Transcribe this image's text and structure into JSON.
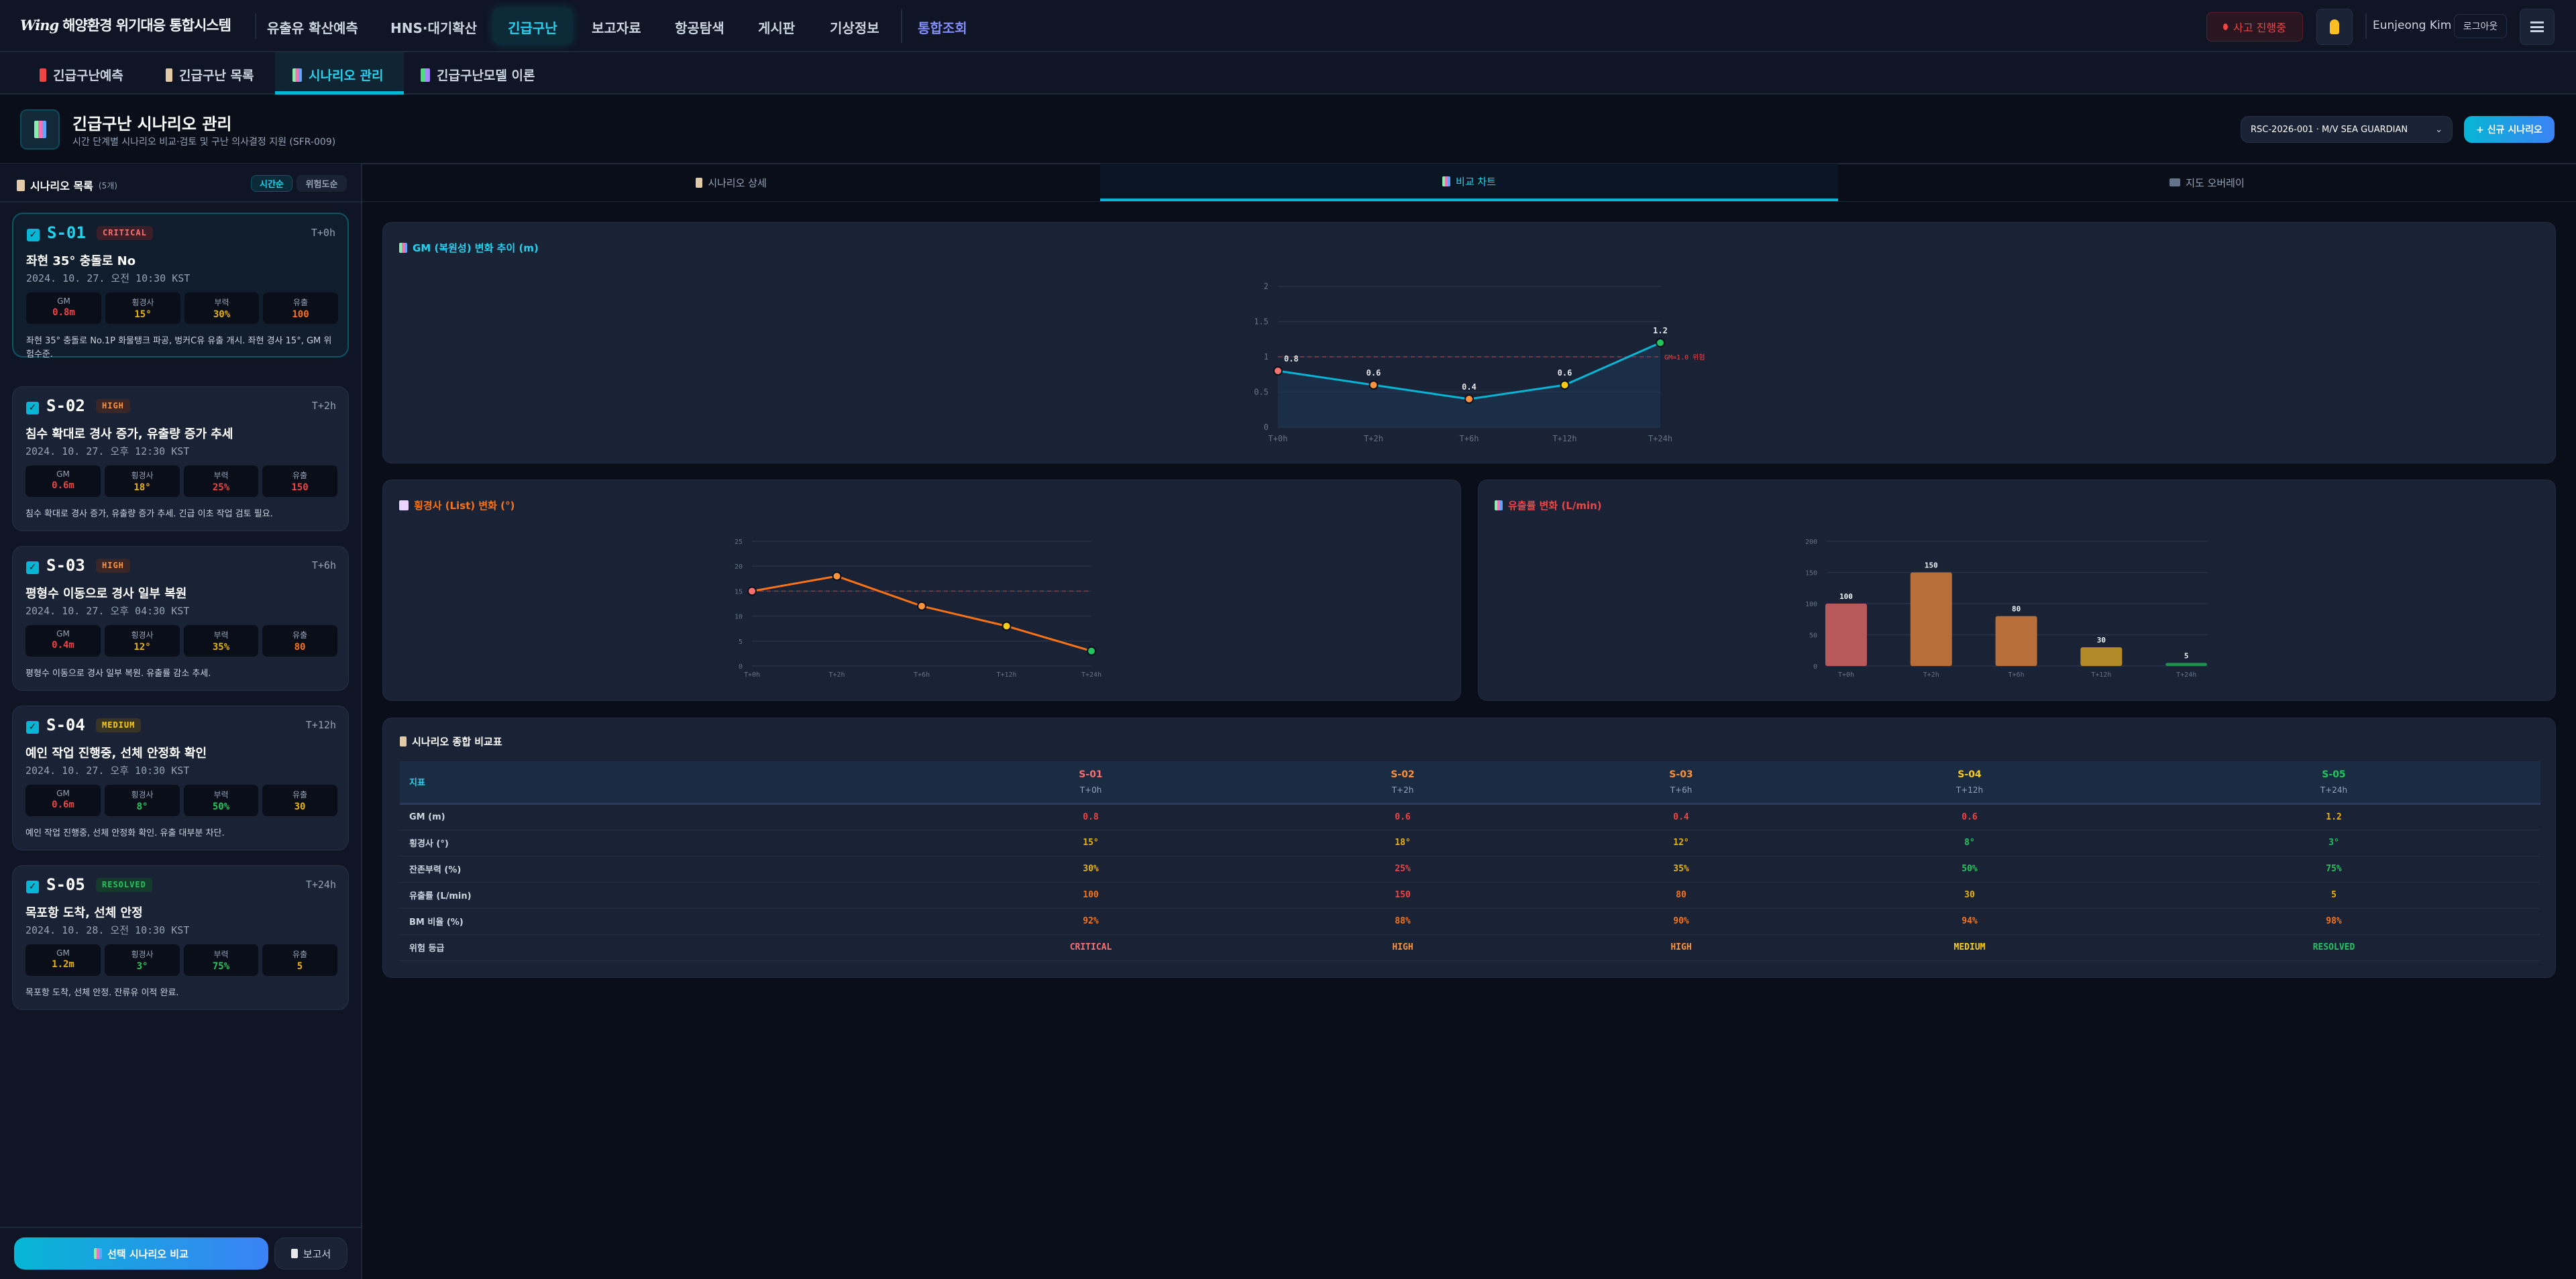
{
  "colors": {
    "accent": "#06b6d4",
    "critical": "#f87171",
    "high": "#fb923c",
    "medium": "#facc15",
    "resolved": "#22c55e",
    "red": "#ef4444",
    "orange": "#f97316",
    "amber": "#eab308",
    "green": "#22c55e"
  },
  "header": {
    "logo_mark": "Wing",
    "app_title": "해양환경 위기대응 통합시스템",
    "nav": [
      "유출유 확산예측",
      "HNS·대기확산",
      "긴급구난",
      "보고자료",
      "항공탐색",
      "게시판",
      "기상정보",
      "통합조회"
    ],
    "active_nav": "긴급구난",
    "incident_badge": "사고 진행중",
    "bell_icon": "bell-icon",
    "user_name": "Eunjeong Kim",
    "logout": "로그아웃",
    "menu_icon": "hamburger-icon"
  },
  "subtabs": [
    {
      "label": "긴급구난예측",
      "icon": "beacon-icon"
    },
    {
      "label": "긴급구난 목록",
      "icon": "clipboard-icon"
    },
    {
      "label": "시나리오 관리",
      "icon": "chart-icon",
      "active": true
    },
    {
      "label": "긴급구난모델 이론",
      "icon": "books-icon"
    }
  ],
  "page": {
    "title": "긴급구난 시나리오 관리",
    "subtitle": "시간 단계별 시나리오 비교·검토 및 구난 의사결정 지원 (SFR-009)",
    "incident_select": "RSC-2026-001 · M/V SEA GUARDIAN",
    "new_button": "+ 신규 시나리오"
  },
  "sidebar": {
    "title": "시나리오 목록",
    "count": "(5개)",
    "sort_time": "시간순",
    "sort_risk": "위험도순",
    "metric_labels": [
      "GM",
      "횡경사",
      "부력",
      "유출"
    ],
    "compare_button": "선택 시나리오 비교",
    "report_button": "보고서",
    "scenarios": [
      {
        "id": "S-01",
        "grade": "CRITICAL",
        "time": "T+0h",
        "title": "좌현 35° 충돌로 No",
        "date": "2024. 10. 27. 오전 10:30 KST",
        "checked": true,
        "selected": true,
        "metrics": [
          {
            "v": "0.8m",
            "c": "#ef4444"
          },
          {
            "v": "15°",
            "c": "#eab308"
          },
          {
            "v": "30%",
            "c": "#eab308"
          },
          {
            "v": "100",
            "c": "#f97316"
          }
        ],
        "desc": "좌현 35° 충돌로 No.1P 화물탱크 파공, 벙커C유 유출 개시. 좌현 경사 15°, GM 위험수준."
      },
      {
        "id": "S-02",
        "grade": "HIGH",
        "time": "T+2h",
        "title": "침수 확대로 경사 증가, 유출량 증가 추세",
        "date": "2024. 10. 27. 오후 12:30 KST",
        "checked": true,
        "metrics": [
          {
            "v": "0.6m",
            "c": "#ef4444"
          },
          {
            "v": "18°",
            "c": "#eab308"
          },
          {
            "v": "25%",
            "c": "#ef4444"
          },
          {
            "v": "150",
            "c": "#ef4444"
          }
        ],
        "desc": "침수 확대로 경사 증가, 유출량 증가 추세. 긴급 이초 작업 검토 필요."
      },
      {
        "id": "S-03",
        "grade": "HIGH",
        "time": "T+6h",
        "title": "평형수 이동으로 경사 일부 복원",
        "date": "2024. 10. 27. 오후 04:30 KST",
        "checked": true,
        "metrics": [
          {
            "v": "0.4m",
            "c": "#ef4444"
          },
          {
            "v": "12°",
            "c": "#eab308"
          },
          {
            "v": "35%",
            "c": "#eab308"
          },
          {
            "v": "80",
            "c": "#f97316"
          }
        ],
        "desc": "평형수 이동으로 경사 일부 복원. 유출률 감소 추세."
      },
      {
        "id": "S-04",
        "grade": "MEDIUM",
        "time": "T+12h",
        "title": "예인 작업 진행중, 선체 안정화 확인",
        "date": "2024. 10. 27. 오후 10:30 KST",
        "checked": true,
        "metrics": [
          {
            "v": "0.6m",
            "c": "#ef4444"
          },
          {
            "v": "8°",
            "c": "#22c55e"
          },
          {
            "v": "50%",
            "c": "#22c55e"
          },
          {
            "v": "30",
            "c": "#eab308"
          }
        ],
        "desc": "예인 작업 진행중, 선체 안정화 확인. 유출 대부분 차단."
      },
      {
        "id": "S-05",
        "grade": "RESOLVED",
        "time": "T+24h",
        "title": "목포항 도착, 선체 안정",
        "date": "2024. 10. 28. 오전 10:30 KST",
        "checked": true,
        "metrics": [
          {
            "v": "1.2m",
            "c": "#eab308"
          },
          {
            "v": "3°",
            "c": "#22c55e"
          },
          {
            "v": "75%",
            "c": "#22c55e"
          },
          {
            "v": "5",
            "c": "#eab308"
          }
        ],
        "desc": "목포항 도착, 선체 안정. 잔류유 이적 완료."
      }
    ]
  },
  "panel_tabs": [
    {
      "label": "시나리오 상세",
      "icon": "clipboard-icon"
    },
    {
      "label": "비교 차트",
      "icon": "chart-icon",
      "active": true
    },
    {
      "label": "지도 오버레이",
      "icon": "map-icon"
    }
  ],
  "chart_data": [
    {
      "type": "line",
      "title": "GM (복원성) 변화 추이 (m)",
      "categories": [
        "T+0h",
        "T+2h",
        "T+6h",
        "T+12h",
        "T+24h"
      ],
      "values": [
        0.8,
        0.6,
        0.4,
        0.6,
        1.2
      ],
      "data_labels": [
        "0.8",
        "0.6",
        "0.4",
        "0.6",
        "1.2"
      ],
      "ylim": [
        0,
        2
      ],
      "yticks": [
        "0",
        "0.5",
        "1",
        "1.5",
        "2"
      ],
      "area": true,
      "line_color": "#06b6d4",
      "point_colors": [
        "#f87171",
        "#fb923c",
        "#fb923c",
        "#facc15",
        "#22c55e"
      ],
      "reference": {
        "value": 1.0,
        "label": "GM=1.0 위험",
        "color": "#ef4444"
      },
      "grid": true
    },
    {
      "type": "line",
      "title": "횡경사 (List) 변화 (°)",
      "categories": [
        "T+0h",
        "T+2h",
        "T+6h",
        "T+12h",
        "T+24h"
      ],
      "values": [
        15,
        18,
        12,
        8,
        3
      ],
      "ylim": [
        0,
        25
      ],
      "yticks": [
        "0",
        "5",
        "10",
        "15",
        "20",
        "25"
      ],
      "line_color": "#f97316",
      "point_colors": [
        "#f87171",
        "#fb923c",
        "#fb923c",
        "#facc15",
        "#22c55e"
      ],
      "reference": {
        "value": 15,
        "color": "#ef4444"
      },
      "grid": true
    },
    {
      "type": "bar",
      "title": "유출률 변화 (L/min)",
      "categories": [
        "T+0h",
        "T+2h",
        "T+6h",
        "T+12h",
        "T+24h"
      ],
      "values": [
        100,
        150,
        80,
        30,
        5
      ],
      "data_labels": [
        "100",
        "150",
        "80",
        "30",
        "5"
      ],
      "ylim": [
        0,
        200
      ],
      "yticks": [
        "0",
        "50",
        "100",
        "150",
        "200"
      ],
      "bar_colors": [
        "#b85a5c",
        "#b86e38",
        "#b86e38",
        "#b38a28",
        "#1f8f4e"
      ],
      "grid": true
    }
  ],
  "table": {
    "title": "시나리오 종합 비교표",
    "label_header": "지표",
    "columns": [
      {
        "id": "S-01",
        "time": "T+0h",
        "color": "#f87171"
      },
      {
        "id": "S-02",
        "time": "T+2h",
        "color": "#fb923c"
      },
      {
        "id": "S-03",
        "time": "T+6h",
        "color": "#fb923c"
      },
      {
        "id": "S-04",
        "time": "T+12h",
        "color": "#facc15"
      },
      {
        "id": "S-05",
        "time": "T+24h",
        "color": "#22c55e"
      }
    ],
    "rows": [
      {
        "label": "GM (m)",
        "cells": [
          {
            "v": "0.8",
            "c": "#ef4444"
          },
          {
            "v": "0.6",
            "c": "#ef4444"
          },
          {
            "v": "0.4",
            "c": "#ef4444"
          },
          {
            "v": "0.6",
            "c": "#ef4444"
          },
          {
            "v": "1.2",
            "c": "#eab308"
          }
        ]
      },
      {
        "label": "횡경사 (°)",
        "cells": [
          {
            "v": "15°",
            "c": "#eab308"
          },
          {
            "v": "18°",
            "c": "#eab308"
          },
          {
            "v": "12°",
            "c": "#eab308"
          },
          {
            "v": "8°",
            "c": "#22c55e"
          },
          {
            "v": "3°",
            "c": "#22c55e"
          }
        ]
      },
      {
        "label": "잔존부력 (%)",
        "cells": [
          {
            "v": "30%",
            "c": "#eab308"
          },
          {
            "v": "25%",
            "c": "#ef4444"
          },
          {
            "v": "35%",
            "c": "#eab308"
          },
          {
            "v": "50%",
            "c": "#22c55e"
          },
          {
            "v": "75%",
            "c": "#22c55e"
          }
        ]
      },
      {
        "label": "유출률 (L/min)",
        "cells": [
          {
            "v": "100",
            "c": "#f97316"
          },
          {
            "v": "150",
            "c": "#ef4444"
          },
          {
            "v": "80",
            "c": "#f97316"
          },
          {
            "v": "30",
            "c": "#eab308"
          },
          {
            "v": "5",
            "c": "#eab308"
          }
        ]
      },
      {
        "label": "BM 비율 (%)",
        "cells": [
          {
            "v": "92%",
            "c": "#f97316"
          },
          {
            "v": "88%",
            "c": "#f97316"
          },
          {
            "v": "90%",
            "c": "#f97316"
          },
          {
            "v": "94%",
            "c": "#f97316"
          },
          {
            "v": "98%",
            "c": "#f97316"
          }
        ]
      },
      {
        "label": "위험 등급",
        "cells": [
          {
            "v": "CRITICAL",
            "c": "#f87171"
          },
          {
            "v": "HIGH",
            "c": "#fb923c"
          },
          {
            "v": "HIGH",
            "c": "#fb923c"
          },
          {
            "v": "MEDIUM",
            "c": "#facc15"
          },
          {
            "v": "RESOLVED",
            "c": "#22c55e"
          }
        ]
      }
    ]
  }
}
